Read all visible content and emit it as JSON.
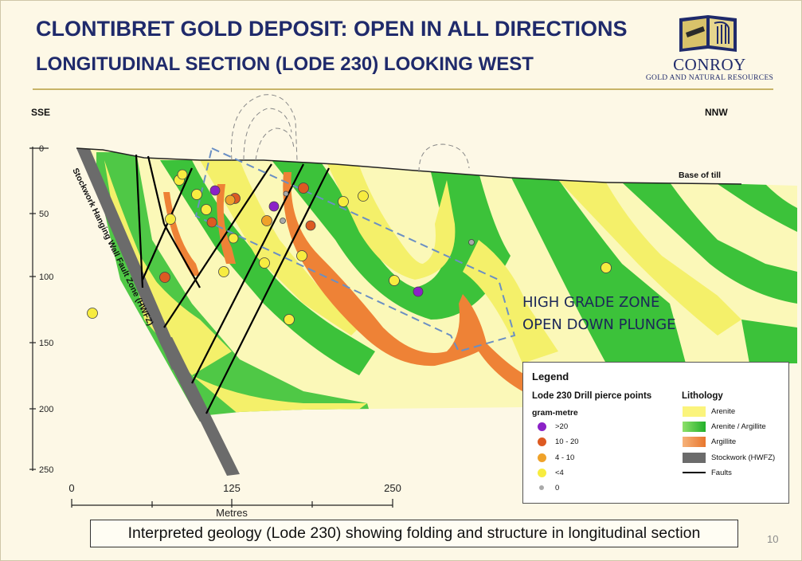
{
  "header": {
    "title": "CLONTIBRET GOLD DEPOSIT: OPEN IN ALL DIRECTIONS",
    "subtitle": "LONGITUDINAL SECTION (LODE 230) LOOKING WEST"
  },
  "logo": {
    "name": "CONROY",
    "tagline": "GOLD AND NATURAL RESOURCES",
    "icon": "open-book-harp-icon",
    "colors": {
      "navy": "#1f2a6b",
      "gold": "#d8c26a"
    }
  },
  "section": {
    "direction_left": "SSE",
    "direction_right": "NNW",
    "base_of_till": "Base of till",
    "fault_zone_label": "Stockwork Hanging Wall Fault Zone (HWFZ)",
    "depth_ticks": [
      "0",
      "50",
      "100",
      "150",
      "200",
      "250"
    ],
    "distance_ticks": [
      "0",
      "125",
      "250"
    ],
    "distance_unit": "Metres",
    "annotation": [
      "HIGH GRADE ZONE",
      "OPEN DOWN PLUNGE"
    ],
    "colors": {
      "arenite": "#f4f06a",
      "arenite_pale": "#fbf8b8",
      "arenite_argillite": "#3cc23a",
      "argillite": "#ee8236",
      "stockwork": "#6b6b6b",
      "high_grade_outline": "#6a8fc4"
    }
  },
  "legend": {
    "title": "Legend",
    "drill_heading": "Lode 230 Drill pierce points",
    "drill_unit": "gram-metre",
    "drill_classes": [
      {
        "label": ">20",
        "color": "#8b22c7"
      },
      {
        "label": "10 - 20",
        "color": "#dd5a22"
      },
      {
        "label": "4 - 10",
        "color": "#efa22a"
      },
      {
        "label": "<4",
        "color": "#f7ec40"
      },
      {
        "label": "0",
        "color": "#a9a9a9"
      }
    ],
    "lithology_heading": "Lithology",
    "lithology": [
      {
        "label": "Arenite",
        "color": "#fbf47c",
        "type": "swatch"
      },
      {
        "label": "Arenite / Argillite",
        "color": "#39c038",
        "type": "swatch"
      },
      {
        "label": "Argillite",
        "color": "#ef9655",
        "type": "swatch"
      },
      {
        "label": "Stockwork (HWFZ)",
        "color": "#6b6b6b",
        "type": "swatch"
      },
      {
        "label": "Faults",
        "color": "#000000",
        "type": "line"
      }
    ]
  },
  "caption": "Interpreted geology (Lode 230) showing folding and structure in longitudinal section",
  "page_number": "10"
}
